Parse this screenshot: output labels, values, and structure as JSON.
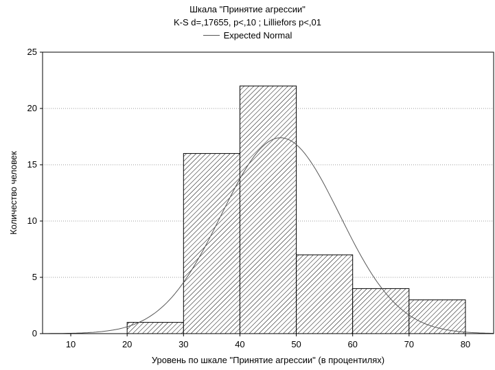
{
  "chart_data": {
    "type": "bar",
    "title": "Шкала \"Принятие агрессии\"",
    "subtitle": "K-S d=,17655, p<,10 ; Lilliefors p<,01",
    "legend": {
      "entries": [
        "Expected Normal"
      ],
      "placement": "top-center"
    },
    "xlabel": "Уровень по шкале \"Принятие агрессии\" (в процентилях)",
    "ylabel": "Количество человек",
    "xlim": [
      5,
      85
    ],
    "ylim": [
      0,
      25
    ],
    "x_ticks": [
      10,
      20,
      30,
      40,
      50,
      60,
      70,
      80
    ],
    "y_ticks": [
      0,
      5,
      10,
      15,
      20,
      25
    ],
    "grid": {
      "horizontal": true,
      "style": "dotted"
    },
    "bins": [
      {
        "from": 20,
        "to": 30,
        "value": 1
      },
      {
        "from": 30,
        "to": 40,
        "value": 16
      },
      {
        "from": 40,
        "to": 50,
        "value": 22
      },
      {
        "from": 50,
        "to": 60,
        "value": 7
      },
      {
        "from": 60,
        "to": 70,
        "value": 4
      },
      {
        "from": 70,
        "to": 80,
        "value": 3
      }
    ],
    "series": [
      {
        "name": "Expected Normal",
        "type": "line",
        "mean": 47.2,
        "sd": 10.5,
        "peak": 17.4
      }
    ],
    "colors": {
      "bar_fill": "#ffffff",
      "hatch": "#000000",
      "curve": "#555555",
      "grid": "#999999"
    }
  }
}
